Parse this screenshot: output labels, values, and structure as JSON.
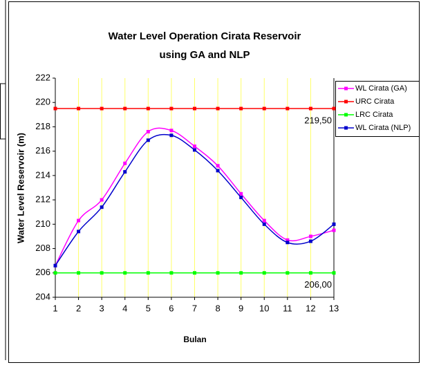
{
  "chart_data": {
    "type": "line",
    "title": [
      "Water Level Operation Cirata Reservoir",
      "using GA and NLP"
    ],
    "y_label": "Water Level Reservoir (m)",
    "x_label": "Bulan",
    "x": [
      1,
      2,
      3,
      4,
      5,
      6,
      7,
      8,
      9,
      10,
      11,
      12,
      13
    ],
    "xlim": [
      1,
      13
    ],
    "xticks": [
      1,
      2,
      3,
      4,
      5,
      6,
      7,
      8,
      9,
      10,
      11,
      12,
      13
    ],
    "ylim": [
      204,
      222
    ],
    "yticks": [
      204,
      206,
      208,
      210,
      212,
      214,
      216,
      218,
      220,
      222
    ],
    "grid": "x",
    "grid_color": "#ffff66",
    "legend": "right",
    "series": [
      {
        "name": "WL Cirata (GA)",
        "color": "#ff00ff",
        "smooth": true,
        "values": [
          206.6,
          210.3,
          212.0,
          215.0,
          217.6,
          217.7,
          216.4,
          214.8,
          212.5,
          210.3,
          208.7,
          209.0,
          209.5
        ]
      },
      {
        "name": "URC Cirata",
        "color": "#ff0000",
        "smooth": false,
        "values": [
          219.5,
          219.5,
          219.5,
          219.5,
          219.5,
          219.5,
          219.5,
          219.5,
          219.5,
          219.5,
          219.5,
          219.5,
          219.5
        ]
      },
      {
        "name": "LRC Cirata",
        "color": "#00ff00",
        "smooth": false,
        "values": [
          206,
          206,
          206,
          206,
          206,
          206,
          206,
          206,
          206,
          206,
          206,
          206,
          206
        ]
      },
      {
        "name": "WL Cirata (NLP)",
        "color": "#0000cc",
        "smooth": true,
        "values": [
          206.6,
          209.4,
          211.4,
          214.3,
          216.9,
          217.3,
          216.1,
          214.4,
          212.2,
          210.0,
          208.5,
          208.6,
          210.0
        ]
      }
    ],
    "annotations": [
      {
        "text": "219,50",
        "x": 13,
        "y": 219.5
      },
      {
        "text": "206,00",
        "x": 13,
        "y": 206
      }
    ]
  }
}
